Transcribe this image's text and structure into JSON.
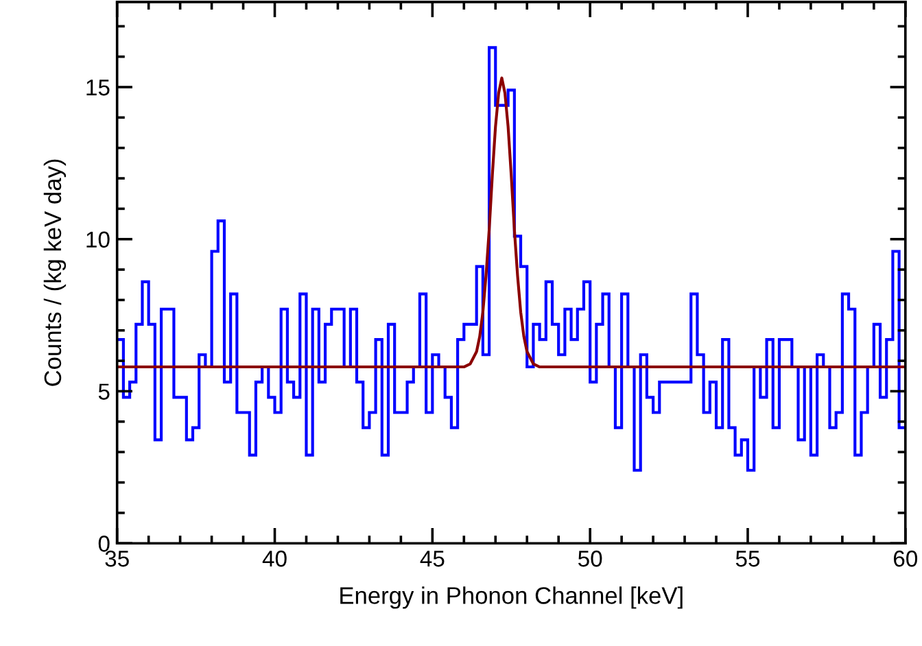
{
  "chart_data": {
    "type": "histogram",
    "xlabel": "Energy in Phonon Channel [keV]",
    "ylabel": "Counts / (kg keV day)",
    "bins": [
      35.0,
      35.2,
      35.4,
      35.6,
      35.8,
      36.0,
      36.2,
      36.4,
      36.6,
      36.8,
      37.0,
      37.2,
      37.4,
      37.6,
      37.8,
      38.0,
      38.2,
      38.4,
      38.6,
      38.8,
      39.0,
      39.2,
      39.4,
      39.6,
      39.8,
      40.0,
      40.2,
      40.4,
      40.6,
      40.8,
      41.0,
      41.2,
      41.4,
      41.6,
      41.8,
      42.0,
      42.2,
      42.4,
      42.6,
      42.8,
      43.0,
      43.2,
      43.4,
      43.6,
      43.8,
      44.0,
      44.2,
      44.4,
      44.6,
      44.8,
      45.0,
      45.2,
      45.4,
      45.6,
      45.8,
      46.0,
      46.2,
      46.4,
      46.6,
      46.8,
      47.0,
      47.2,
      47.4,
      47.6,
      47.8,
      48.0,
      48.2,
      48.4,
      48.6,
      48.8,
      49.0,
      49.2,
      49.4,
      49.6,
      49.8,
      50.0,
      50.2,
      50.4,
      50.6,
      50.8,
      51.0,
      51.2,
      51.4,
      51.6,
      51.8,
      52.0,
      52.2,
      52.4,
      52.6,
      52.8,
      53.0,
      53.2,
      53.4,
      53.6,
      53.8,
      54.0,
      54.2,
      54.4,
      54.6,
      54.8,
      55.0,
      55.2,
      55.4,
      55.6,
      55.8,
      56.0,
      56.2,
      56.4,
      56.6,
      56.8,
      57.0,
      57.2,
      57.4,
      57.6,
      57.8,
      58.0,
      58.2,
      58.4,
      58.6,
      58.8,
      59.0,
      59.2,
      59.4,
      59.6,
      59.8,
      60.0
    ],
    "series": [
      {
        "color": "#0000ff",
        "values": [
          6.7,
          4.8,
          5.3,
          7.2,
          8.6,
          7.2,
          3.4,
          7.7,
          7.7,
          4.8,
          4.8,
          3.4,
          3.8,
          6.2,
          5.8,
          9.6,
          10.6,
          5.3,
          8.2,
          4.3,
          4.3,
          2.9,
          5.3,
          5.8,
          4.8,
          4.3,
          7.7,
          5.3,
          4.8,
          8.2,
          2.9,
          7.7,
          5.3,
          7.2,
          7.7,
          7.7,
          5.8,
          7.7,
          5.3,
          3.8,
          4.3,
          6.7,
          2.9,
          7.2,
          4.3,
          4.3,
          5.3,
          5.8,
          8.2,
          4.3,
          6.2,
          5.8,
          4.8,
          3.8,
          6.7,
          7.2,
          7.2,
          9.1,
          6.2,
          16.3,
          14.4,
          14.4,
          14.9,
          10.1,
          9.1,
          5.8,
          7.2,
          6.7,
          8.6,
          7.2,
          6.2,
          7.7,
          6.7,
          7.7,
          8.6,
          5.3,
          7.2,
          8.2,
          5.8,
          3.8,
          8.2,
          5.8,
          2.4,
          6.2,
          4.8,
          4.3,
          5.3,
          5.3,
          5.3,
          5.3,
          5.3,
          8.2,
          6.2,
          4.3,
          5.3,
          3.8,
          6.7,
          3.8,
          2.9,
          3.4,
          2.4,
          5.8,
          4.8,
          6.7,
          3.8,
          6.7,
          6.7,
          5.8,
          3.4,
          5.8,
          2.9,
          6.2,
          5.8,
          3.8,
          4.3,
          8.2,
          7.7,
          2.9,
          4.3,
          5.8,
          7.2,
          4.8,
          6.7,
          9.6,
          3.8
        ]
      },
      {
        "type": "line",
        "color": "#8b0000",
        "x": [
          35.0,
          46.0,
          46.2,
          46.4,
          46.5,
          46.6,
          46.7,
          46.8,
          46.9,
          47.0,
          47.1,
          47.2,
          47.3,
          47.4,
          47.5,
          47.6,
          47.7,
          47.8,
          47.9,
          48.0,
          48.2,
          48.4,
          60.0
        ],
        "values": [
          5.8,
          5.8,
          5.9,
          6.3,
          6.8,
          7.6,
          8.8,
          10.3,
          12.1,
          13.7,
          14.8,
          15.3,
          14.8,
          13.7,
          12.1,
          10.3,
          8.8,
          7.6,
          6.8,
          6.3,
          5.9,
          5.8,
          5.8
        ]
      }
    ],
    "xlim": [
      35,
      60
    ],
    "xticks": [
      35,
      {
        "value": 36,
        "label": null
      },
      {
        "value": 37,
        "label": null
      },
      {
        "value": 38,
        "label": null
      },
      {
        "value": 39,
        "label": null
      },
      40,
      {
        "value": 41,
        "label": null
      },
      {
        "value": 42,
        "label": null
      },
      {
        "value": 43,
        "label": null
      },
      {
        "value": 44,
        "label": null
      },
      45,
      {
        "value": 46,
        "label": null
      },
      {
        "value": 47,
        "label": null
      },
      {
        "value": 48,
        "label": null
      },
      {
        "value": 49,
        "label": null
      },
      50,
      {
        "value": 51,
        "label": null
      },
      {
        "value": 52,
        "label": null
      },
      {
        "value": 53,
        "label": null
      },
      {
        "value": 54,
        "label": null
      },
      55,
      {
        "value": 56,
        "label": null
      },
      {
        "value": 57,
        "label": null
      },
      {
        "value": 58,
        "label": null
      },
      {
        "value": 59,
        "label": null
      },
      60
    ],
    "ylim": [
      0,
      17.8
    ],
    "yticks": [
      0,
      {
        "value": 1,
        "label": null
      },
      {
        "value": 2,
        "label": null
      },
      {
        "value": 3,
        "label": null
      },
      {
        "value": 4,
        "label": null
      },
      5,
      {
        "value": 6,
        "label": null
      },
      {
        "value": 7,
        "label": null
      },
      {
        "value": 8,
        "label": null
      },
      {
        "value": 9,
        "label": null
      },
      10,
      {
        "value": 11,
        "label": null
      },
      {
        "value": 12,
        "label": null
      },
      {
        "value": 13,
        "label": null
      },
      {
        "value": 14,
        "label": null
      },
      15,
      {
        "value": 16,
        "label": null
      },
      {
        "value": 17,
        "label": null
      }
    ],
    "grid": false
  }
}
